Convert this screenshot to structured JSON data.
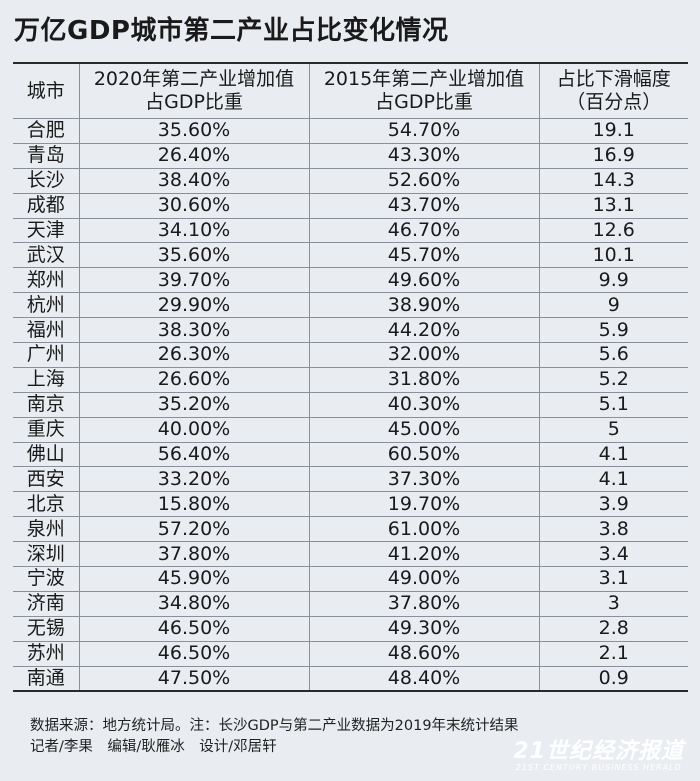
{
  "title": "万亿GDP城市第二产业占比变化情况",
  "chart_data": {
    "type": "table",
    "headers": {
      "city": "城市",
      "v2020_line1": "2020年第二产业增加值",
      "v2020_line2": "占GDP比重",
      "v2015_line1": "2015年第二产业增加值",
      "v2015_line2": "占GDP比重",
      "drop_line1": "占比下滑幅度",
      "drop_line2": "（百分点）"
    },
    "rows": [
      {
        "city": "合肥",
        "v2020": "35.60%",
        "v2015": "54.70%",
        "drop": "19.1"
      },
      {
        "city": "青岛",
        "v2020": "26.40%",
        "v2015": "43.30%",
        "drop": "16.9"
      },
      {
        "city": "长沙",
        "v2020": "38.40%",
        "v2015": "52.60%",
        "drop": "14.3"
      },
      {
        "city": "成都",
        "v2020": "30.60%",
        "v2015": "43.70%",
        "drop": "13.1"
      },
      {
        "city": "天津",
        "v2020": "34.10%",
        "v2015": "46.70%",
        "drop": "12.6"
      },
      {
        "city": "武汉",
        "v2020": "35.60%",
        "v2015": "45.70%",
        "drop": "10.1"
      },
      {
        "city": "郑州",
        "v2020": "39.70%",
        "v2015": "49.60%",
        "drop": "9.9"
      },
      {
        "city": "杭州",
        "v2020": "29.90%",
        "v2015": "38.90%",
        "drop": "9"
      },
      {
        "city": "福州",
        "v2020": "38.30%",
        "v2015": "44.20%",
        "drop": "5.9"
      },
      {
        "city": "广州",
        "v2020": "26.30%",
        "v2015": "32.00%",
        "drop": "5.6"
      },
      {
        "city": "上海",
        "v2020": "26.60%",
        "v2015": "31.80%",
        "drop": "5.2"
      },
      {
        "city": "南京",
        "v2020": "35.20%",
        "v2015": "40.30%",
        "drop": "5.1"
      },
      {
        "city": "重庆",
        "v2020": "40.00%",
        "v2015": "45.00%",
        "drop": "5"
      },
      {
        "city": "佛山",
        "v2020": "56.40%",
        "v2015": "60.50%",
        "drop": "4.1"
      },
      {
        "city": "西安",
        "v2020": "33.20%",
        "v2015": "37.30%",
        "drop": "4.1"
      },
      {
        "city": "北京",
        "v2020": "15.80%",
        "v2015": "19.70%",
        "drop": "3.9"
      },
      {
        "city": "泉州",
        "v2020": "57.20%",
        "v2015": "61.00%",
        "drop": "3.8"
      },
      {
        "city": "深圳",
        "v2020": "37.80%",
        "v2015": "41.20%",
        "drop": "3.4"
      },
      {
        "city": "宁波",
        "v2020": "45.90%",
        "v2015": "49.00%",
        "drop": "3.1"
      },
      {
        "city": "济南",
        "v2020": "34.80%",
        "v2015": "37.80%",
        "drop": "3"
      },
      {
        "city": "无锡",
        "v2020": "46.50%",
        "v2015": "49.30%",
        "drop": "2.8"
      },
      {
        "city": "苏州",
        "v2020": "46.50%",
        "v2015": "48.60%",
        "drop": "2.1"
      },
      {
        "city": "南通",
        "v2020": "47.50%",
        "v2015": "48.40%",
        "drop": "0.9"
      }
    ]
  },
  "footer": {
    "source": "数据来源：地方统计局。注：长沙GDP与第二产业数据为2019年末统计结果",
    "credits": "记者/李果　编辑/耿雁冰　设计/邓居轩"
  },
  "brand": {
    "name_cn": "21世纪经济报道",
    "name_en": "21ST CENTURY BUSINESS HERALD"
  },
  "colors": {
    "background": "#e9edf2",
    "grid_line": "#8a9099",
    "rule": "#2a2a2a"
  }
}
